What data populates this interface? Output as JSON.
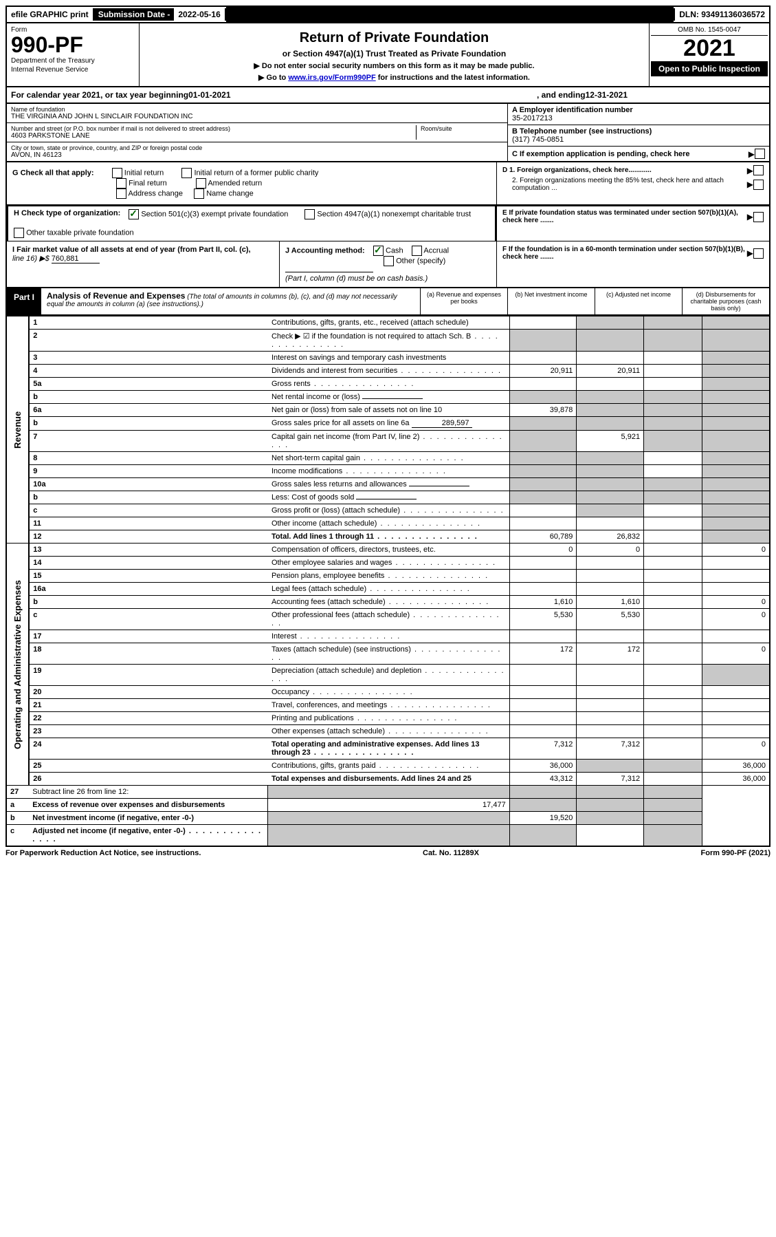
{
  "topbar": {
    "efile_label": "efile GRAPHIC print",
    "sub_date_label": "Submission Date - ",
    "sub_date_val": "2022-05-16",
    "dln_label": "DLN: ",
    "dln_val": "93491136036572"
  },
  "header": {
    "form_label": "Form",
    "form_number": "990-PF",
    "dept1": "Department of the Treasury",
    "dept2": "Internal Revenue Service",
    "title": "Return of Private Foundation",
    "subtitle": "or Section 4947(a)(1) Trust Treated as Private Foundation",
    "instr1": "▶ Do not enter social security numbers on this form as it may be made public.",
    "instr2_pre": "▶ Go to ",
    "instr2_link": "www.irs.gov/Form990PF",
    "instr2_post": " for instructions and the latest information.",
    "omb": "OMB No. 1545-0047",
    "year": "2021",
    "open": "Open to Public Inspection"
  },
  "cal_year": {
    "pre": "For calendar year 2021, or tax year beginning ",
    "begin": "01-01-2021",
    "mid": " , and ending ",
    "end": "12-31-2021"
  },
  "entity": {
    "name_label": "Name of foundation",
    "name": "THE VIRGINIA AND JOHN L SINCLAIR FOUNDATION INC",
    "addr_label": "Number and street (or P.O. box number if mail is not delivered to street address)",
    "addr": "4603 PARKSTONE LANE",
    "room_label": "Room/suite",
    "city_label": "City or town, state or province, country, and ZIP or foreign postal code",
    "city": "AVON, IN  46123",
    "ein_label": "A Employer identification number",
    "ein": "35-2017213",
    "phone_label": "B Telephone number (see instructions)",
    "phone": "(317) 745-0851",
    "c_label": "C If exemption application is pending, check here",
    "d1": "D 1. Foreign organizations, check here............",
    "d2": "2. Foreign organizations meeting the 85% test, check here and attach computation ...",
    "e": "E If private foundation status was terminated under section 507(b)(1)(A), check here .......",
    "f": "F If the foundation is in a 60-month termination under section 507(b)(1)(B), check here ......."
  },
  "g": {
    "label": "G Check all that apply:",
    "opts": [
      "Initial return",
      "Initial return of a former public charity",
      "Final return",
      "Amended return",
      "Address change",
      "Name change"
    ]
  },
  "h": {
    "label": "H Check type of organization:",
    "opt1": "Section 501(c)(3) exempt private foundation",
    "opt2": "Section 4947(a)(1) nonexempt charitable trust",
    "opt3": "Other taxable private foundation"
  },
  "i": {
    "label": "I Fair market value of all assets at end of year (from Part II, col. (c),",
    "line16": "line 16) ▶$ ",
    "val": "760,881"
  },
  "j": {
    "label": "J Accounting method:",
    "cash": "Cash",
    "accrual": "Accrual",
    "other": "Other (specify)",
    "note": "(Part I, column (d) must be on cash basis.)"
  },
  "part1": {
    "label": "Part I",
    "title": "Analysis of Revenue and Expenses",
    "note": " (The total of amounts in columns (b), (c), and (d) may not necessarily equal the amounts in column (a) (see instructions).)",
    "col_a": "(a) Revenue and expenses per books",
    "col_b": "(b) Net investment income",
    "col_c": "(c) Adjusted net income",
    "col_d": "(d) Disbursements for charitable purposes (cash basis only)"
  },
  "side_labels": {
    "revenue": "Revenue",
    "expenses": "Operating and Administrative Expenses"
  },
  "rows": [
    {
      "n": "1",
      "d": "Contributions, gifts, grants, etc., received (attach schedule)",
      "a": "",
      "b": "shade",
      "c": "shade",
      "dd": "shade"
    },
    {
      "n": "2",
      "d": "Check ▶ ☑ if the foundation is not required to attach Sch. B",
      "a": "shade",
      "b": "shade",
      "c": "shade",
      "dd": "shade",
      "dots": true
    },
    {
      "n": "3",
      "d": "Interest on savings and temporary cash investments",
      "a": "",
      "b": "",
      "c": "",
      "dd": "shade"
    },
    {
      "n": "4",
      "d": "Dividends and interest from securities",
      "a": "20,911",
      "b": "20,911",
      "c": "",
      "dd": "shade",
      "dots": true
    },
    {
      "n": "5a",
      "d": "Gross rents",
      "a": "",
      "b": "",
      "c": "",
      "dd": "shade",
      "dots": true
    },
    {
      "n": "b",
      "d": "Net rental income or (loss)",
      "a": "shade",
      "b": "shade",
      "c": "shade",
      "dd": "shade",
      "inline": ""
    },
    {
      "n": "6a",
      "d": "Net gain or (loss) from sale of assets not on line 10",
      "a": "39,878",
      "b": "shade",
      "c": "shade",
      "dd": "shade"
    },
    {
      "n": "b",
      "d": "Gross sales price for all assets on line 6a",
      "a": "shade",
      "b": "shade",
      "c": "shade",
      "dd": "shade",
      "inline": "289,597"
    },
    {
      "n": "7",
      "d": "Capital gain net income (from Part IV, line 2)",
      "a": "shade",
      "b": "5,921",
      "c": "shade",
      "dd": "shade",
      "dots": true
    },
    {
      "n": "8",
      "d": "Net short-term capital gain",
      "a": "shade",
      "b": "shade",
      "c": "",
      "dd": "shade",
      "dots": true
    },
    {
      "n": "9",
      "d": "Income modifications",
      "a": "shade",
      "b": "shade",
      "c": "",
      "dd": "shade",
      "dots": true
    },
    {
      "n": "10a",
      "d": "Gross sales less returns and allowances",
      "a": "shade",
      "b": "shade",
      "c": "shade",
      "dd": "shade",
      "inline": ""
    },
    {
      "n": "b",
      "d": "Less: Cost of goods sold",
      "a": "shade",
      "b": "shade",
      "c": "shade",
      "dd": "shade",
      "inline": "",
      "dots": true
    },
    {
      "n": "c",
      "d": "Gross profit or (loss) (attach schedule)",
      "a": "",
      "b": "shade",
      "c": "",
      "dd": "shade",
      "dots": true
    },
    {
      "n": "11",
      "d": "Other income (attach schedule)",
      "a": "",
      "b": "",
      "c": "",
      "dd": "shade",
      "dots": true
    },
    {
      "n": "12",
      "d": "Total. Add lines 1 through 11",
      "a": "60,789",
      "b": "26,832",
      "c": "",
      "dd": "shade",
      "bold": true,
      "dots": true
    }
  ],
  "exp_rows": [
    {
      "n": "13",
      "d": "Compensation of officers, directors, trustees, etc.",
      "a": "0",
      "b": "0",
      "c": "",
      "dd": "0"
    },
    {
      "n": "14",
      "d": "Other employee salaries and wages",
      "a": "",
      "b": "",
      "c": "",
      "dd": "",
      "dots": true
    },
    {
      "n": "15",
      "d": "Pension plans, employee benefits",
      "a": "",
      "b": "",
      "c": "",
      "dd": "",
      "dots": true
    },
    {
      "n": "16a",
      "d": "Legal fees (attach schedule)",
      "a": "",
      "b": "",
      "c": "",
      "dd": "",
      "dots": true
    },
    {
      "n": "b",
      "d": "Accounting fees (attach schedule)",
      "a": "1,610",
      "b": "1,610",
      "c": "",
      "dd": "0",
      "dots": true
    },
    {
      "n": "c",
      "d": "Other professional fees (attach schedule)",
      "a": "5,530",
      "b": "5,530",
      "c": "",
      "dd": "0",
      "dots": true
    },
    {
      "n": "17",
      "d": "Interest",
      "a": "",
      "b": "",
      "c": "",
      "dd": "",
      "dots": true
    },
    {
      "n": "18",
      "d": "Taxes (attach schedule) (see instructions)",
      "a": "172",
      "b": "172",
      "c": "",
      "dd": "0",
      "dots": true
    },
    {
      "n": "19",
      "d": "Depreciation (attach schedule) and depletion",
      "a": "",
      "b": "",
      "c": "",
      "dd": "shade",
      "dots": true
    },
    {
      "n": "20",
      "d": "Occupancy",
      "a": "",
      "b": "",
      "c": "",
      "dd": "",
      "dots": true
    },
    {
      "n": "21",
      "d": "Travel, conferences, and meetings",
      "a": "",
      "b": "",
      "c": "",
      "dd": "",
      "dots": true
    },
    {
      "n": "22",
      "d": "Printing and publications",
      "a": "",
      "b": "",
      "c": "",
      "dd": "",
      "dots": true
    },
    {
      "n": "23",
      "d": "Other expenses (attach schedule)",
      "a": "",
      "b": "",
      "c": "",
      "dd": "",
      "dots": true
    },
    {
      "n": "24",
      "d": "Total operating and administrative expenses. Add lines 13 through 23",
      "a": "7,312",
      "b": "7,312",
      "c": "",
      "dd": "0",
      "bold": true,
      "dots": true
    },
    {
      "n": "25",
      "d": "Contributions, gifts, grants paid",
      "a": "36,000",
      "b": "shade",
      "c": "shade",
      "dd": "36,000",
      "dots": true
    },
    {
      "n": "26",
      "d": "Total expenses and disbursements. Add lines 24 and 25",
      "a": "43,312",
      "b": "7,312",
      "c": "",
      "dd": "36,000",
      "bold": true
    }
  ],
  "final_rows": [
    {
      "n": "27",
      "d": "Subtract line 26 from line 12:",
      "a": "shade",
      "b": "shade",
      "c": "shade",
      "dd": "shade"
    },
    {
      "n": "a",
      "d": "Excess of revenue over expenses and disbursements",
      "a": "17,477",
      "b": "shade",
      "c": "shade",
      "dd": "shade",
      "bold": true
    },
    {
      "n": "b",
      "d": "Net investment income (if negative, enter -0-)",
      "a": "shade",
      "b": "19,520",
      "c": "shade",
      "dd": "shade",
      "bold": true
    },
    {
      "n": "c",
      "d": "Adjusted net income (if negative, enter -0-)",
      "a": "shade",
      "b": "shade",
      "c": "",
      "dd": "shade",
      "bold": true,
      "dots": true
    }
  ],
  "footer": {
    "left": "For Paperwork Reduction Act Notice, see instructions.",
    "mid": "Cat. No. 11289X",
    "right": "Form 990-PF (2021)"
  },
  "colors": {
    "link": "#0000cc",
    "check": "#006400",
    "shade": "#c8c8c8"
  }
}
